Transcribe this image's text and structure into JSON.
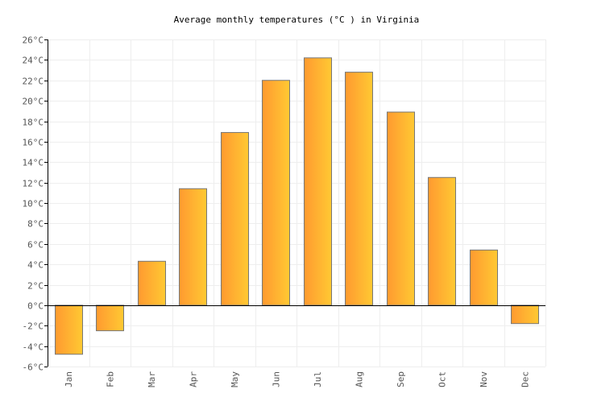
{
  "chart_data": {
    "type": "bar",
    "title": "Average monthly temperatures (°C ) in Virginia",
    "xlabel": "",
    "ylabel": "",
    "categories": [
      "Jan",
      "Feb",
      "Mar",
      "Apr",
      "May",
      "Jun",
      "Jul",
      "Aug",
      "Sep",
      "Oct",
      "Nov",
      "Dec"
    ],
    "values": [
      -4.8,
      -2.5,
      4.3,
      11.4,
      16.9,
      22.0,
      24.2,
      22.8,
      18.9,
      12.5,
      5.4,
      -1.8
    ],
    "ylim": [
      -6,
      26
    ],
    "ytick_step": 2,
    "ytick_labels": [
      "-6°C",
      "-4°C",
      "-2°C",
      "0°C",
      "2°C",
      "4°C",
      "6°C",
      "8°C",
      "10°C",
      "12°C",
      "14°C",
      "16°C",
      "18°C",
      "20°C",
      "22°C",
      "24°C",
      "26°C"
    ],
    "grid": true,
    "legend": "none",
    "colors": {
      "bar_left": "#ff9a30",
      "bar_right": "#ffc933",
      "bar_border": "#777777",
      "grid": "#eeeeee",
      "axis": "#000000"
    }
  }
}
